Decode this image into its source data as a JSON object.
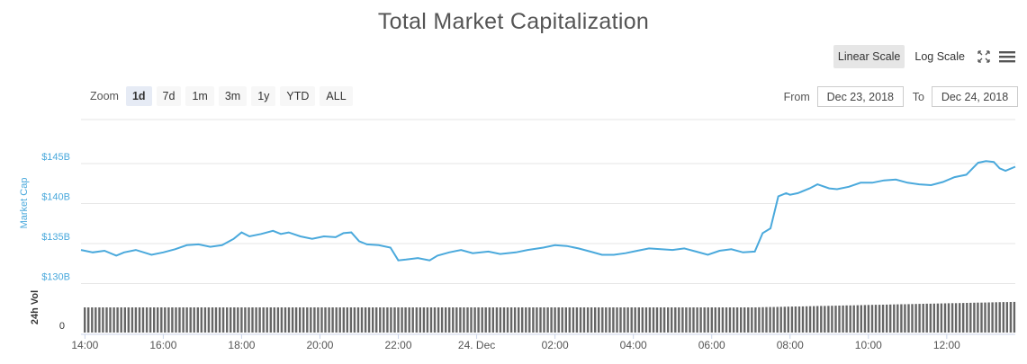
{
  "header": {
    "title": "Total Market Capitalization"
  },
  "scale_buttons": {
    "linear": "Linear Scale",
    "log": "Log Scale",
    "active": "linear"
  },
  "zoom": {
    "label": "Zoom",
    "buttons": [
      "1d",
      "7d",
      "1m",
      "3m",
      "1y",
      "YTD",
      "ALL"
    ],
    "active": "1d"
  },
  "range": {
    "from_label": "From",
    "from_value": "Dec 23, 2018",
    "to_label": "To",
    "to_value": "Dec 24, 2018"
  },
  "icons": {
    "fullscreen": "expand-icon",
    "menu": "hamburger-menu-icon"
  },
  "colors": {
    "line": "#4aa9dc",
    "volume": "#666666",
    "grid": "#e6e6e6"
  },
  "chart_data": {
    "type": "line",
    "title": "Total Market Capitalization",
    "ylabel": "Market Cap",
    "volume_label": "24h Vol",
    "y_tick_labels": [
      "$130B",
      "$135B",
      "$140B",
      "$145B"
    ],
    "y_ticks": [
      130,
      135,
      140,
      145
    ],
    "ylim": [
      129.5,
      150.5
    ],
    "volume_tick_label": "0",
    "x_tick_labels": [
      "14:00",
      "16:00",
      "18:00",
      "20:00",
      "22:00",
      "24. Dec",
      "02:00",
      "04:00",
      "06:00",
      "08:00",
      "10:00",
      "12:00"
    ],
    "x_ticks": [
      14,
      16,
      18,
      20,
      22,
      24,
      26,
      28,
      30,
      32,
      34,
      36
    ],
    "xlim": [
      13.9,
      37.75
    ],
    "grid": true,
    "series": [
      {
        "x": [
          13.9,
          14.2,
          14.5,
          14.8,
          15.0,
          15.3,
          15.7,
          16.0,
          16.3,
          16.6,
          16.9,
          17.2,
          17.5,
          17.8,
          18.0,
          18.2,
          18.5,
          18.8,
          19.0,
          19.2,
          19.5,
          19.8,
          20.1,
          20.4,
          20.6,
          20.8,
          21.0,
          21.2,
          21.5,
          21.8,
          22.0,
          22.2,
          22.5,
          22.8,
          23.0,
          23.3,
          23.6,
          23.9,
          24.3,
          24.6,
          25.0,
          25.3,
          25.7,
          26.0,
          26.3,
          26.6,
          26.9,
          27.2,
          27.5,
          27.8,
          28.1,
          28.4,
          28.7,
          29.0,
          29.3,
          29.6,
          29.9,
          30.2,
          30.5,
          30.8,
          31.1,
          31.3,
          31.5,
          31.7,
          31.9,
          32.0,
          32.2,
          32.5,
          32.7,
          33.0,
          33.2,
          33.5,
          33.8,
          34.1,
          34.4,
          34.7,
          35.0,
          35.3,
          35.6,
          35.9,
          36.2,
          36.5,
          36.8,
          37.0,
          37.2,
          37.35,
          37.5,
          37.75
        ],
        "values": [
          134.2,
          133.9,
          134.1,
          133.5,
          133.9,
          134.2,
          133.6,
          133.9,
          134.3,
          134.8,
          134.9,
          134.6,
          134.8,
          135.6,
          136.4,
          135.9,
          136.2,
          136.6,
          136.2,
          136.4,
          135.9,
          135.6,
          135.9,
          135.8,
          136.3,
          136.4,
          135.3,
          134.9,
          134.8,
          134.5,
          132.9,
          133.0,
          133.2,
          132.9,
          133.5,
          133.9,
          134.2,
          133.8,
          134.0,
          133.7,
          133.9,
          134.2,
          134.5,
          134.8,
          134.7,
          134.4,
          134.0,
          133.6,
          133.6,
          133.8,
          134.1,
          134.4,
          134.3,
          134.2,
          134.4,
          134.0,
          133.6,
          134.1,
          134.3,
          133.9,
          134.0,
          136.3,
          136.9,
          140.9,
          141.3,
          141.1,
          141.3,
          141.9,
          142.4,
          141.9,
          141.8,
          142.1,
          142.6,
          142.6,
          142.9,
          143.0,
          142.6,
          142.4,
          142.3,
          142.7,
          143.3,
          143.6,
          145.1,
          145.3,
          145.2,
          144.4,
          144.1,
          144.6
        ]
      }
    ],
    "volume_description": "dense uniform volume bars, slightly taller after 07:00"
  }
}
